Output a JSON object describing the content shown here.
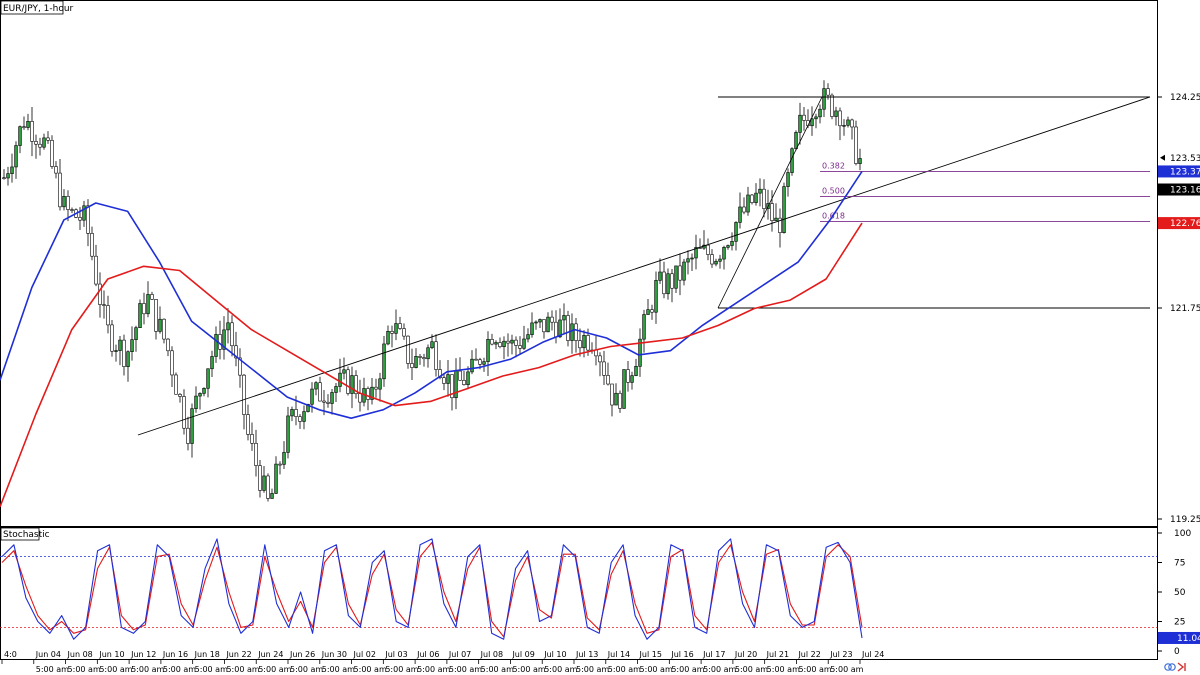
{
  "chart_data": {
    "type": "candlestick",
    "symbol_title": "EUR/JPY, 1-hour",
    "indicator_title": "Stochastic",
    "price_ticks": [
      "124.256",
      "121.756",
      "119.256"
    ],
    "price_ylim": [
      118.9,
      124.95
    ],
    "stoch_ticks": [
      "100",
      "75",
      "50",
      "25",
      "0"
    ],
    "stoch_levels": [
      80,
      20
    ],
    "price_badges": [
      {
        "value": "123.536",
        "style": "marker"
      },
      {
        "value": "123.374",
        "style": "blue"
      },
      {
        "value": "123.160",
        "style": "black"
      },
      {
        "value": "122.762",
        "style": "red"
      }
    ],
    "stoch_badge": "11.04",
    "fib_levels": [
      {
        "label": "0.382",
        "price": 123.374
      },
      {
        "label": "0.500",
        "price": 123.078
      },
      {
        "label": "0.618",
        "price": 122.782
      }
    ],
    "horizontal_levels": [
      124.256,
      121.756
    ],
    "date_labels": [
      "4:0",
      "Jun 04",
      "Jun 08",
      "Jun 10",
      "Jun 12",
      "Jun 16",
      "Jun 18",
      "Jun 22",
      "Jun 24",
      "Jun 26",
      "Jun 30",
      "Jul 02",
      "Jul 03",
      "Jul 06",
      "Jul 07",
      "Jul 08",
      "Jul 09",
      "Jul 10",
      "Jul 13",
      "Jul 14",
      "Jul 15",
      "Jul 16",
      "Jul 17",
      "Jul 20",
      "Jul 21",
      "Jul 22",
      "Jul 23",
      "Jul 24"
    ],
    "time_labels": [
      "5:00 am",
      "5:00 am",
      "5:00 am",
      "5:00 am",
      "5:00 am",
      "5:00 am",
      "5:00 am",
      "5:00 am",
      "5:00 am",
      "5:00 am",
      "5:00 am",
      "5:00 am",
      "5:00 am",
      "5:00 am",
      "5:00 am",
      "5:00 am",
      "5:00 am",
      "5:00 am",
      "5:00 am",
      "5:00 am",
      "5:00 am",
      "5:00 am",
      "5:00 am",
      "5:00 am",
      "5:00 am",
      "5:00 am"
    ],
    "key_prices": [
      123.3,
      124.0,
      123.7,
      122.9,
      122.8,
      121.5,
      121.2,
      121.9,
      121.3,
      120.3,
      121.1,
      121.6,
      120.2,
      119.4,
      120.4,
      120.7,
      120.8,
      120.9,
      120.6,
      121.6,
      121.1,
      121.3,
      120.8,
      121.0,
      121.5,
      121.3,
      121.5,
      121.6,
      121.4,
      121.4,
      120.6,
      121.2,
      122.0,
      122.1,
      122.4,
      122.4,
      122.8,
      123.1,
      122.7,
      123.9,
      124.25,
      124.1,
      123.5
    ],
    "blue_ma": [
      120.9,
      122.0,
      122.8,
      123.0,
      122.9,
      122.3,
      121.6,
      121.3,
      121.0,
      120.7,
      120.55,
      120.45,
      120.55,
      120.75,
      121.0,
      121.05,
      121.15,
      121.35,
      121.5,
      121.4,
      121.2,
      121.25,
      121.55,
      121.8,
      122.05,
      122.3,
      122.8,
      123.374
    ],
    "red_ma": [
      119.4,
      120.5,
      121.5,
      122.1,
      122.25,
      122.2,
      121.85,
      121.5,
      121.25,
      121.0,
      120.75,
      120.6,
      120.65,
      120.8,
      120.95,
      121.05,
      121.2,
      121.3,
      121.35,
      121.4,
      121.55,
      121.75,
      121.85,
      122.1,
      122.762
    ],
    "stoch_k": [
      80,
      90,
      45,
      25,
      15,
      30,
      10,
      20,
      85,
      90,
      20,
      15,
      25,
      90,
      80,
      30,
      20,
      70,
      95,
      40,
      15,
      25,
      90,
      40,
      20,
      50,
      15,
      85,
      90,
      30,
      20,
      75,
      85,
      25,
      20,
      90,
      95,
      40,
      20,
      80,
      90,
      15,
      10,
      70,
      85,
      25,
      30,
      90,
      80,
      20,
      15,
      75,
      90,
      30,
      10,
      20,
      90,
      85,
      20,
      15,
      85,
      95,
      40,
      20,
      90,
      85,
      30,
      20,
      25,
      88,
      92,
      75,
      11
    ],
    "stoch_d": [
      75,
      85,
      55,
      30,
      18,
      25,
      15,
      18,
      70,
      88,
      30,
      18,
      22,
      80,
      82,
      40,
      22,
      60,
      88,
      50,
      20,
      22,
      80,
      50,
      25,
      42,
      20,
      75,
      88,
      40,
      22,
      65,
      82,
      35,
      22,
      80,
      92,
      50,
      25,
      70,
      88,
      25,
      12,
      60,
      80,
      35,
      28,
      82,
      82,
      28,
      18,
      65,
      85,
      40,
      15,
      18,
      80,
      86,
      30,
      18,
      75,
      90,
      50,
      25,
      82,
      86,
      40,
      22,
      22,
      80,
      90,
      80,
      20
    ]
  }
}
